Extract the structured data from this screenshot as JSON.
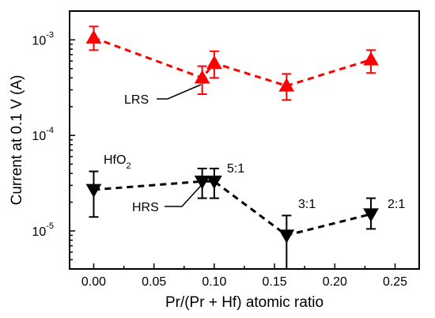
{
  "chart_data": {
    "type": "scatter",
    "xlabel": "Pr/(Pr + Hf) atomic ratio",
    "ylabel": "Current at 0.1 V (A)",
    "xlim": [
      -0.02,
      0.27
    ],
    "ylim": [
      4e-06,
      0.002
    ],
    "yscale": "log",
    "x_ticks": [
      0.0,
      0.05,
      0.1,
      0.15,
      0.2,
      0.25
    ],
    "x_tick_labels": [
      "0.00",
      "0.05",
      "0.10",
      "0.15",
      "0.20",
      "0.25"
    ],
    "y_ticks": [
      {
        "value": 1e-05,
        "base": "10",
        "exp": "-5"
      },
      {
        "value": 0.0001,
        "base": "10",
        "exp": "-4"
      },
      {
        "value": 0.001,
        "base": "10",
        "exp": "-3"
      }
    ],
    "grid": false,
    "series": [
      {
        "name": "LRS",
        "color": "#ff0000",
        "marker": "triangle-up",
        "linestyle": "dashed",
        "points": [
          {
            "x": 0.0,
            "y": 0.00105,
            "low": 0.00078,
            "high": 0.00138
          },
          {
            "x": 0.09,
            "y": 0.0004,
            "low": 0.00027,
            "high": 0.00053
          },
          {
            "x": 0.1,
            "y": 0.00057,
            "low": 0.0004,
            "high": 0.00076
          },
          {
            "x": 0.16,
            "y": 0.00033,
            "low": 0.000235,
            "high": 0.00044
          },
          {
            "x": 0.23,
            "y": 0.00062,
            "low": 0.00045,
            "high": 0.00078
          }
        ]
      },
      {
        "name": "HRS",
        "color": "#000000",
        "marker": "triangle-down",
        "linestyle": "dashed",
        "points": [
          {
            "x": 0.0,
            "y": 2.7e-05,
            "low": 1.4e-05,
            "high": 4.2e-05
          },
          {
            "x": 0.09,
            "y": 3.3e-05,
            "low": 2.2e-05,
            "high": 4.5e-05
          },
          {
            "x": 0.1,
            "y": 3.3e-05,
            "low": 2.2e-05,
            "high": 4.5e-05
          },
          {
            "x": 0.16,
            "y": 9e-06,
            "low": 4e-06,
            "high": 1.45e-05
          },
          {
            "x": 0.23,
            "y": 1.5e-05,
            "low": 1.05e-05,
            "high": 2.2e-05
          }
        ]
      }
    ],
    "annotations": {
      "lrs_label": "LRS",
      "hrs_label": "HRS",
      "hfo2_base": "HfO",
      "hfo2_sub": "2",
      "ratio_5_1": "5:1",
      "ratio_3_1": "3:1",
      "ratio_2_1": "2:1"
    }
  }
}
